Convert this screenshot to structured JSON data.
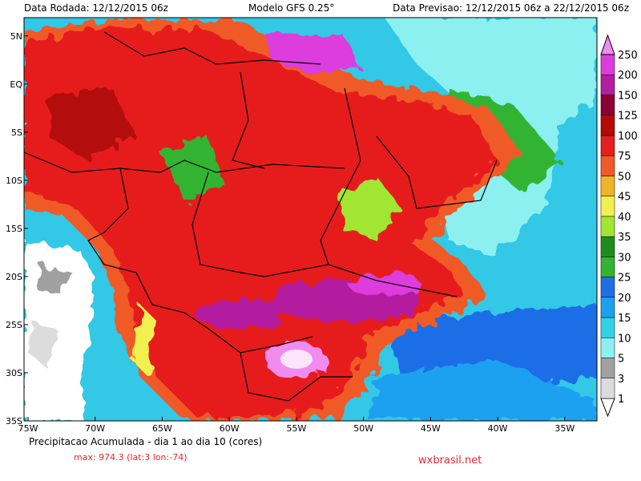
{
  "header": {
    "run": "Data Rodada: 12/12/2015 06z",
    "model": "Modelo GFS 0.25°",
    "forecast": "Data Previsao: 12/12/2015 06z a 22/12/2015 06z"
  },
  "map": {
    "xlim": [
      -75.3,
      -32.6
    ],
    "ylim": [
      -35,
      6.9
    ],
    "xticks": [
      {
        "value": -75,
        "label": "75W"
      },
      {
        "value": -70,
        "label": "70W"
      },
      {
        "value": -65,
        "label": "65W"
      },
      {
        "value": -60,
        "label": "60W"
      },
      {
        "value": -55,
        "label": "55W"
      },
      {
        "value": -50,
        "label": "50W"
      },
      {
        "value": -45,
        "label": "45W"
      },
      {
        "value": -40,
        "label": "40W"
      },
      {
        "value": -35,
        "label": "35W"
      }
    ],
    "yticks": [
      {
        "value": 5,
        "label": "5N"
      },
      {
        "value": 0,
        "label": "EQ"
      },
      {
        "value": -5,
        "label": "5S"
      },
      {
        "value": -10,
        "label": "10S"
      },
      {
        "value": -15,
        "label": "15S"
      },
      {
        "value": -20,
        "label": "20S"
      },
      {
        "value": -25,
        "label": "25S"
      },
      {
        "value": -30,
        "label": "30S"
      },
      {
        "value": -35,
        "label": "35S"
      }
    ]
  },
  "colorbar": {
    "levels": [
      1,
      3,
      5,
      10,
      15,
      20,
      25,
      30,
      35,
      40,
      45,
      50,
      75,
      100,
      125,
      150,
      200,
      250
    ],
    "colors": [
      "#ffffff",
      "#dcdcdc",
      "#a0a0a0",
      "#8cf0f0",
      "#32d2e6",
      "#1ea0f0",
      "#1e6ee6",
      "#32b432",
      "#1e8c1e",
      "#a0e632",
      "#f0f050",
      "#f0b428",
      "#f05a28",
      "#e61e1e",
      "#b40a0a",
      "#8c0032",
      "#b41ea0",
      "#dc3cdc",
      "#f08cf0"
    ]
  },
  "footer": {
    "caption": "Precipitacao Acumulada - dia 1 ao dia 10 (cores)",
    "max": "max: 974.3 (lat:3 lon:-74)",
    "site": "wxbrasil.net"
  }
}
